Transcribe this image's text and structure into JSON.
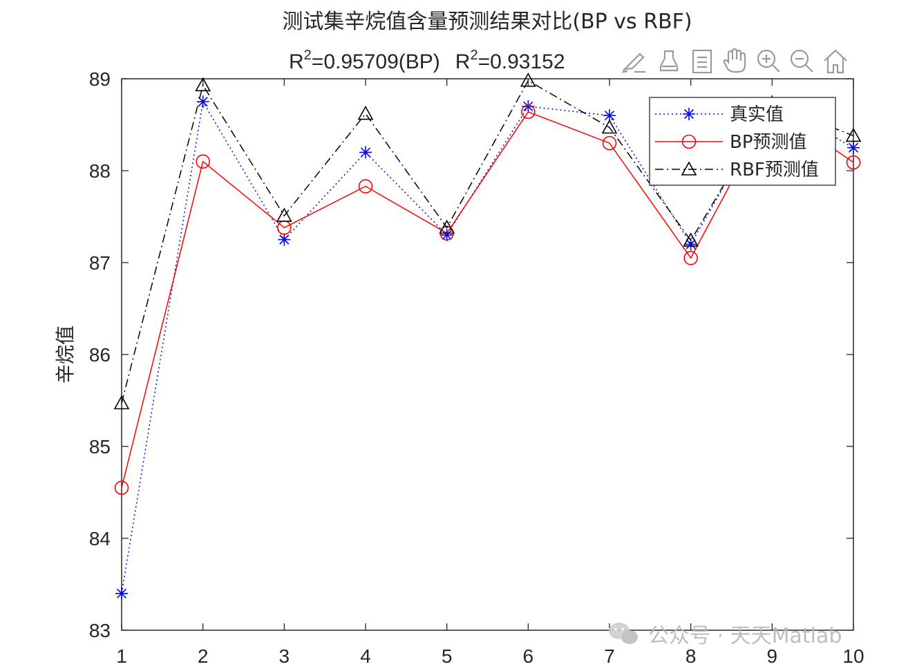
{
  "chart_data": {
    "type": "line",
    "title": "测试集辛烷值含量预测结果对比(BP vs RBF)",
    "subtitle": {
      "bp_prefix": "R",
      "bp_sup": "2",
      "bp_value": "=0.95709(BP)",
      "rbf_prefix": "R",
      "rbf_sup": "2",
      "rbf_value": "=0.93152"
    },
    "xlabel": "",
    "ylabel": "辛烷值",
    "x": [
      1,
      2,
      3,
      4,
      5,
      6,
      7,
      8,
      9,
      10
    ],
    "xlim": [
      1,
      10
    ],
    "ylim": [
      83,
      89
    ],
    "xticks": [
      "1",
      "2",
      "3",
      "4",
      "5",
      "6",
      "7",
      "8",
      "9",
      "10"
    ],
    "yticks": [
      "83",
      "84",
      "85",
      "86",
      "87",
      "88",
      "89"
    ],
    "grid": false,
    "legend_position": "top-right",
    "series": [
      {
        "name": "真实值",
        "color": "#0000ff",
        "line_style": "dotted",
        "marker": "asterisk",
        "values": [
          83.4,
          88.75,
          87.25,
          88.2,
          87.3,
          88.7,
          88.6,
          87.2,
          88.75,
          88.25
        ]
      },
      {
        "name": "BP预测值",
        "color": "#ff0000",
        "line_style": "solid",
        "marker": "circle",
        "values": [
          84.55,
          88.1,
          87.38,
          87.83,
          87.32,
          88.64,
          88.3,
          87.05,
          88.7,
          88.09
        ]
      },
      {
        "name": "RBF预测值",
        "color": "#000000",
        "line_style": "dashdot",
        "marker": "triangle",
        "values": [
          85.47,
          88.93,
          87.51,
          88.62,
          87.38,
          88.98,
          88.47,
          87.24,
          88.73,
          88.38
        ]
      }
    ]
  },
  "toolbar": {
    "icons": [
      "brush-icon",
      "paint-bucket-icon",
      "data-tips-icon",
      "pan-hand-icon",
      "zoom-in-icon",
      "zoom-out-icon",
      "home-icon"
    ]
  },
  "watermark": {
    "text": "公众号 · 天天Matlab",
    "icon": "wechat-icon"
  }
}
